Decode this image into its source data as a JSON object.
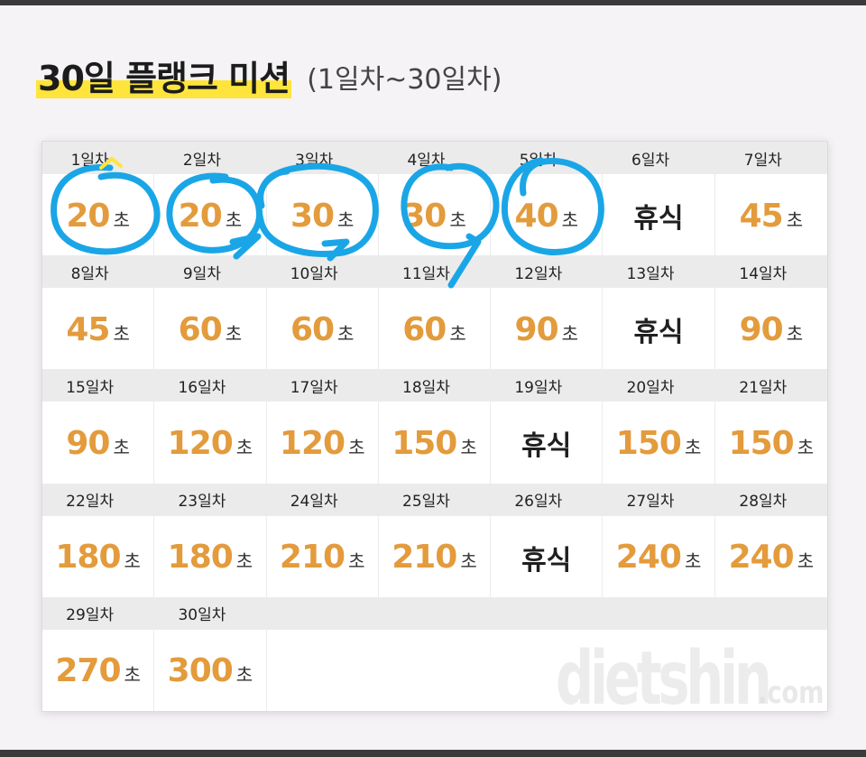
{
  "title": {
    "main": "30일 플랭크 미션",
    "sub": "(1일차~30일차)"
  },
  "unit": "초",
  "rest_label": "휴식",
  "watermark": {
    "text": "dietshin",
    "suffix": ".com"
  },
  "days": [
    {
      "day": "1일차",
      "value": "20"
    },
    {
      "day": "2일차",
      "value": "20"
    },
    {
      "day": "3일차",
      "value": "30"
    },
    {
      "day": "4일차",
      "value": "30"
    },
    {
      "day": "5일차",
      "value": "40"
    },
    {
      "day": "6일차",
      "rest": true
    },
    {
      "day": "7일차",
      "value": "45"
    },
    {
      "day": "8일차",
      "value": "45"
    },
    {
      "day": "9일차",
      "value": "60"
    },
    {
      "day": "10일차",
      "value": "60"
    },
    {
      "day": "11일차",
      "value": "60"
    },
    {
      "day": "12일차",
      "value": "90"
    },
    {
      "day": "13일차",
      "rest": true
    },
    {
      "day": "14일차",
      "value": "90"
    },
    {
      "day": "15일차",
      "value": "90"
    },
    {
      "day": "16일차",
      "value": "120"
    },
    {
      "day": "17일차",
      "value": "120"
    },
    {
      "day": "18일차",
      "value": "150"
    },
    {
      "day": "19일차",
      "rest": true
    },
    {
      "day": "20일차",
      "value": "150"
    },
    {
      "day": "21일차",
      "value": "150"
    },
    {
      "day": "22일차",
      "value": "180"
    },
    {
      "day": "23일차",
      "value": "180"
    },
    {
      "day": "24일차",
      "value": "210"
    },
    {
      "day": "25일차",
      "value": "210"
    },
    {
      "day": "26일차",
      "rest": true
    },
    {
      "day": "27일차",
      "value": "240"
    },
    {
      "day": "28일차",
      "value": "240"
    },
    {
      "day": "29일차",
      "value": "270"
    },
    {
      "day": "30일차",
      "value": "300"
    }
  ],
  "colors": {
    "accent": "#e39b3c",
    "highlight": "#ffe53b",
    "circle": "#1aa6e6"
  }
}
